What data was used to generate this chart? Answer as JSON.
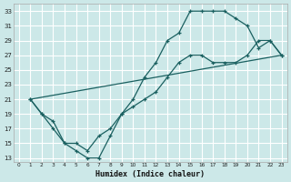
{
  "xlabel": "Humidex (Indice chaleur)",
  "bg_color": "#cce8e8",
  "grid_color": "#b8d8d8",
  "line_color": "#1a6060",
  "line1_x": [
    1,
    2,
    3,
    4,
    5,
    6,
    7,
    8,
    9,
    10,
    11,
    12,
    13,
    14,
    15,
    16,
    17,
    18,
    19,
    20,
    21,
    22,
    23
  ],
  "line1_y": [
    21,
    19,
    17,
    15,
    14,
    13,
    13,
    16,
    19,
    21,
    24,
    26,
    29,
    30,
    33,
    33,
    33,
    33,
    32,
    31,
    28,
    29,
    27
  ],
  "line2_x": [
    1,
    2,
    3,
    4,
    5,
    6,
    7,
    8,
    9,
    10,
    11,
    12,
    13,
    14,
    15,
    16,
    17,
    18,
    19,
    20,
    21,
    22,
    23
  ],
  "line2_y": [
    21,
    19,
    18,
    15,
    15,
    14,
    16,
    17,
    19,
    20,
    21,
    22,
    24,
    26,
    27,
    27,
    26,
    26,
    26,
    27,
    29,
    29,
    27
  ],
  "line3_x": [
    1,
    23
  ],
  "line3_y": [
    21,
    27
  ],
  "xlim": [
    -0.5,
    23.5
  ],
  "ylim": [
    12.5,
    34
  ],
  "yticks": [
    13,
    15,
    17,
    19,
    21,
    23,
    25,
    27,
    29,
    31,
    33
  ],
  "xticks": [
    0,
    1,
    2,
    3,
    4,
    5,
    6,
    7,
    8,
    9,
    10,
    11,
    12,
    13,
    14,
    15,
    16,
    17,
    18,
    19,
    20,
    21,
    22,
    23
  ]
}
